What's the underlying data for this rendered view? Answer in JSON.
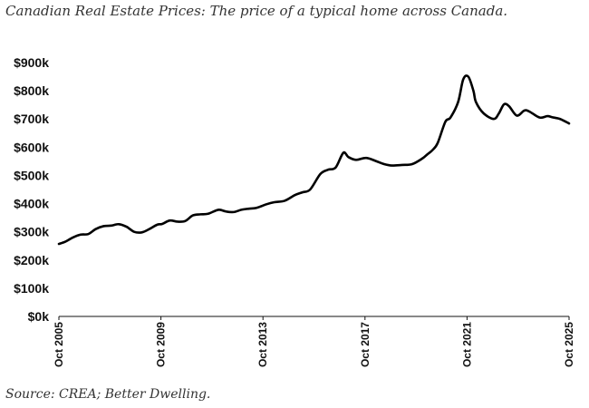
{
  "chart_data": {
    "type": "line",
    "title": "Canadian Real Estate Prices: The price of a typical home across Canada.",
    "source": "Source: CREA; Better Dwelling.",
    "xlabel": "",
    "ylabel": "",
    "ylim": [
      0,
      900000
    ],
    "y_ticks": [
      {
        "value": 0,
        "label": "$0k"
      },
      {
        "value": 100000,
        "label": "$100k"
      },
      {
        "value": 200000,
        "label": "$200k"
      },
      {
        "value": 300000,
        "label": "$300k"
      },
      {
        "value": 400000,
        "label": "$400k"
      },
      {
        "value": 500000,
        "label": "$500k"
      },
      {
        "value": 600000,
        "label": "$600k"
      },
      {
        "value": 700000,
        "label": "$700k"
      },
      {
        "value": 800000,
        "label": "$800k"
      },
      {
        "value": 900000,
        "label": "$900k"
      }
    ],
    "xlim": [
      2005.75,
      2025.75
    ],
    "x_ticks": [
      {
        "value": 2005.75,
        "label": "Oct 2005"
      },
      {
        "value": 2009.75,
        "label": "Oct 2009"
      },
      {
        "value": 2013.75,
        "label": "Oct 2013"
      },
      {
        "value": 2017.75,
        "label": "Oct 2017"
      },
      {
        "value": 2021.75,
        "label": "Oct 2021"
      },
      {
        "value": 2025.75,
        "label": "Oct 2025"
      }
    ],
    "grid": false,
    "legend": "none",
    "color": "#000000",
    "series": [
      {
        "name": "Typical home price",
        "x": [
          2005.75,
          2006.0,
          2006.3,
          2006.6,
          2006.9,
          2007.2,
          2007.5,
          2007.8,
          2008.1,
          2008.4,
          2008.7,
          2009.0,
          2009.3,
          2009.6,
          2009.8,
          2010.1,
          2010.4,
          2010.7,
          2011.0,
          2011.3,
          2011.6,
          2012.0,
          2012.3,
          2012.6,
          2012.9,
          2013.2,
          2013.5,
          2013.9,
          2014.2,
          2014.6,
          2015.0,
          2015.3,
          2015.6,
          2016.0,
          2016.3,
          2016.6,
          2016.9,
          2017.1,
          2017.4,
          2017.8,
          2018.2,
          2018.5,
          2018.8,
          2019.2,
          2019.6,
          2020.0,
          2020.2,
          2020.4,
          2020.6,
          2020.9,
          2021.1,
          2021.4,
          2021.6,
          2021.8,
          2022.0,
          2022.1,
          2022.4,
          2022.8,
          2023.0,
          2023.2,
          2023.4,
          2023.7,
          2024.0,
          2024.2,
          2024.6,
          2024.9,
          2025.1,
          2025.4,
          2025.75
        ],
        "values": [
          257000,
          265000,
          280000,
          290000,
          292000,
          310000,
          320000,
          322000,
          327000,
          318000,
          300000,
          298000,
          310000,
          325000,
          328000,
          340000,
          336000,
          338000,
          358000,
          362000,
          364000,
          378000,
          372000,
          370000,
          378000,
          382000,
          385000,
          398000,
          405000,
          410000,
          430000,
          440000,
          450000,
          505000,
          520000,
          528000,
          580000,
          565000,
          555000,
          562000,
          550000,
          540000,
          535000,
          537000,
          540000,
          560000,
          575000,
          590000,
          615000,
          690000,
          705000,
          760000,
          840000,
          850000,
          800000,
          760000,
          720000,
          700000,
          720000,
          752000,
          745000,
          712000,
          730000,
          726000,
          705000,
          710000,
          706000,
          700000,
          684000
        ]
      }
    ]
  }
}
